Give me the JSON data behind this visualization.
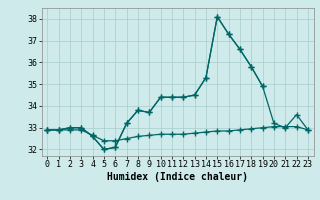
{
  "title": "",
  "xlabel": "Humidex (Indice chaleur)",
  "ylabel": "",
  "background_color": "#ceeaea",
  "grid_color": "#aacccc",
  "line_color": "#006666",
  "x": [
    0,
    1,
    2,
    3,
    4,
    5,
    6,
    7,
    8,
    9,
    10,
    11,
    12,
    13,
    14,
    15,
    16,
    17,
    18,
    19,
    20,
    21,
    22,
    23
  ],
  "line_peak": [
    32.9,
    32.9,
    33.0,
    33.0,
    32.6,
    32.0,
    32.1,
    33.2,
    33.8,
    33.7,
    34.4,
    34.4,
    34.4,
    34.5,
    35.3,
    38.1,
    37.3,
    36.6,
    35.8,
    34.9,
    null,
    null,
    null,
    null
  ],
  "line_full": [
    32.9,
    32.9,
    33.0,
    33.0,
    32.6,
    32.0,
    32.1,
    33.2,
    33.8,
    33.7,
    34.4,
    34.4,
    34.4,
    34.5,
    35.3,
    38.1,
    37.3,
    36.6,
    35.8,
    34.9,
    33.2,
    33.0,
    33.6,
    32.9
  ],
  "line_base": [
    32.9,
    32.9,
    32.9,
    32.9,
    32.65,
    32.4,
    32.4,
    32.5,
    32.6,
    32.65,
    32.7,
    32.7,
    32.7,
    32.75,
    32.8,
    32.85,
    32.85,
    32.9,
    32.95,
    33.0,
    33.05,
    33.05,
    33.05,
    32.9
  ],
  "ylim": [
    31.7,
    38.5
  ],
  "xlim": [
    -0.5,
    23.5
  ],
  "yticks": [
    32,
    33,
    34,
    35,
    36,
    37,
    38
  ],
  "xticks": [
    0,
    1,
    2,
    3,
    4,
    5,
    6,
    7,
    8,
    9,
    10,
    11,
    12,
    13,
    14,
    15,
    16,
    17,
    18,
    19,
    20,
    21,
    22,
    23
  ]
}
